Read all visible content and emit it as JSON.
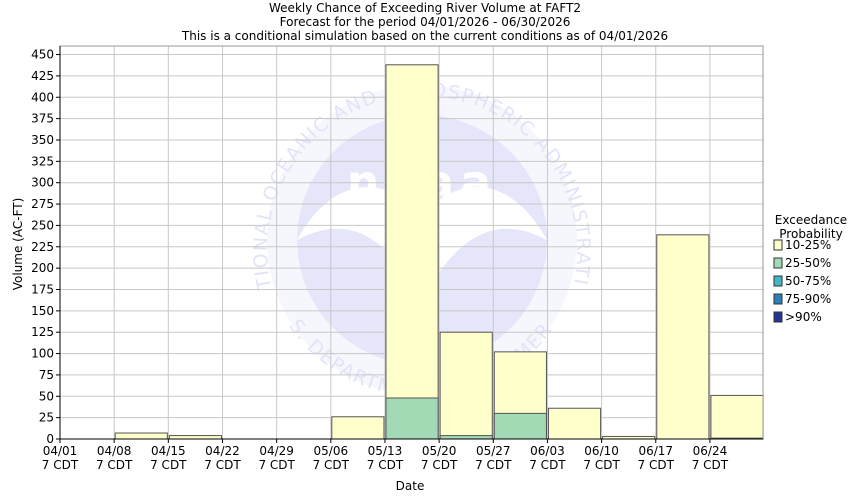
{
  "header": {
    "title": "Weekly Chance of Exceeding River Volume at FAFT2",
    "subtitle1": "Forecast for the period 04/01/2026 - 06/30/2026",
    "subtitle2": "This is a conditional simulation based on the current conditions as of 04/01/2026"
  },
  "watermark": {
    "text_top": "NATIONAL OCEANIC AND ATMOSPHERIC ADMINISTRATION",
    "text_bottom": "U.S. DEPARTMENT OF COMMERCE",
    "logo_text": "noaa"
  },
  "legend": {
    "title_line1": "Exceedance",
    "title_line2": "Probability",
    "items": [
      {
        "label": "10-25%",
        "color": "#ffffcc"
      },
      {
        "label": "25-50%",
        "color": "#a1dab4"
      },
      {
        "label": "50-75%",
        "color": "#41b6c4"
      },
      {
        "label": "75-90%",
        "color": "#2c7fb8"
      },
      {
        "label": ">90%",
        "color": "#253494"
      }
    ]
  },
  "chart_data": {
    "type": "bar",
    "title": "Weekly Chance of Exceeding River Volume at FAFT2",
    "xlabel": "Date",
    "ylabel": "Volume (AC-FT)",
    "ylim": [
      0,
      460
    ],
    "yticks": [
      0,
      25,
      50,
      75,
      100,
      125,
      150,
      175,
      200,
      225,
      250,
      275,
      300,
      325,
      350,
      375,
      400,
      425,
      450
    ],
    "x_tick_labels": [
      [
        "04/01",
        "7 CDT"
      ],
      [
        "04/08",
        "7 CDT"
      ],
      [
        "04/15",
        "7 CDT"
      ],
      [
        "04/22",
        "7 CDT"
      ],
      [
        "04/29",
        "7 CDT"
      ],
      [
        "05/06",
        "7 CDT"
      ],
      [
        "05/13",
        "7 CDT"
      ],
      [
        "05/20",
        "7 CDT"
      ],
      [
        "05/27",
        "7 CDT"
      ],
      [
        "06/03",
        "7 CDT"
      ],
      [
        "06/10",
        "7 CDT"
      ],
      [
        "06/17",
        "7 CDT"
      ],
      [
        "06/24",
        "7 CDT"
      ]
    ],
    "grid": true,
    "legend_placement": "right",
    "series": [
      {
        "name": "10-25%",
        "color": "#ffffcc",
        "values": [
          0,
          7,
          4,
          0,
          0,
          26,
          438,
          125,
          102,
          36,
          3,
          239,
          51
        ]
      },
      {
        "name": "25-50%",
        "color": "#a1dab4",
        "values": [
          0,
          0,
          0,
          0,
          0,
          0,
          48,
          4,
          30,
          0,
          0,
          0,
          1
        ]
      }
    ]
  }
}
